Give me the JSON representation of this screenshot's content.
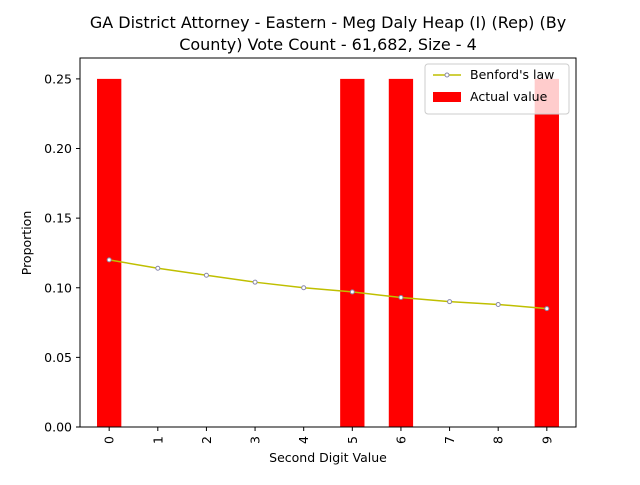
{
  "chart_data": {
    "type": "bar",
    "title_lines": [
      "GA District Attorney - Eastern - Meg Daly Heap (I) (Rep) (By",
      "County) Vote Count - 61,682, Size - 4"
    ],
    "xlabel": "Second Digit Value",
    "ylabel": "Proportion",
    "categories": [
      "0",
      "1",
      "2",
      "3",
      "4",
      "5",
      "6",
      "7",
      "8",
      "9"
    ],
    "ylim": [
      0,
      0.265
    ],
    "yticks": [
      "0.00",
      "0.05",
      "0.10",
      "0.15",
      "0.20",
      "0.25"
    ],
    "legend_position": "top-right",
    "series": [
      {
        "name": "Benford's law",
        "type": "line",
        "color": "#bfbf00",
        "marker_color": "#8888aa",
        "values": [
          0.12,
          0.114,
          0.109,
          0.104,
          0.1,
          0.097,
          0.093,
          0.09,
          0.088,
          0.085
        ]
      },
      {
        "name": "Actual value",
        "type": "bar",
        "color": "#ff0000",
        "values": [
          0.25,
          0,
          0,
          0,
          0,
          0.25,
          0.25,
          0,
          0,
          0.25
        ]
      }
    ]
  }
}
